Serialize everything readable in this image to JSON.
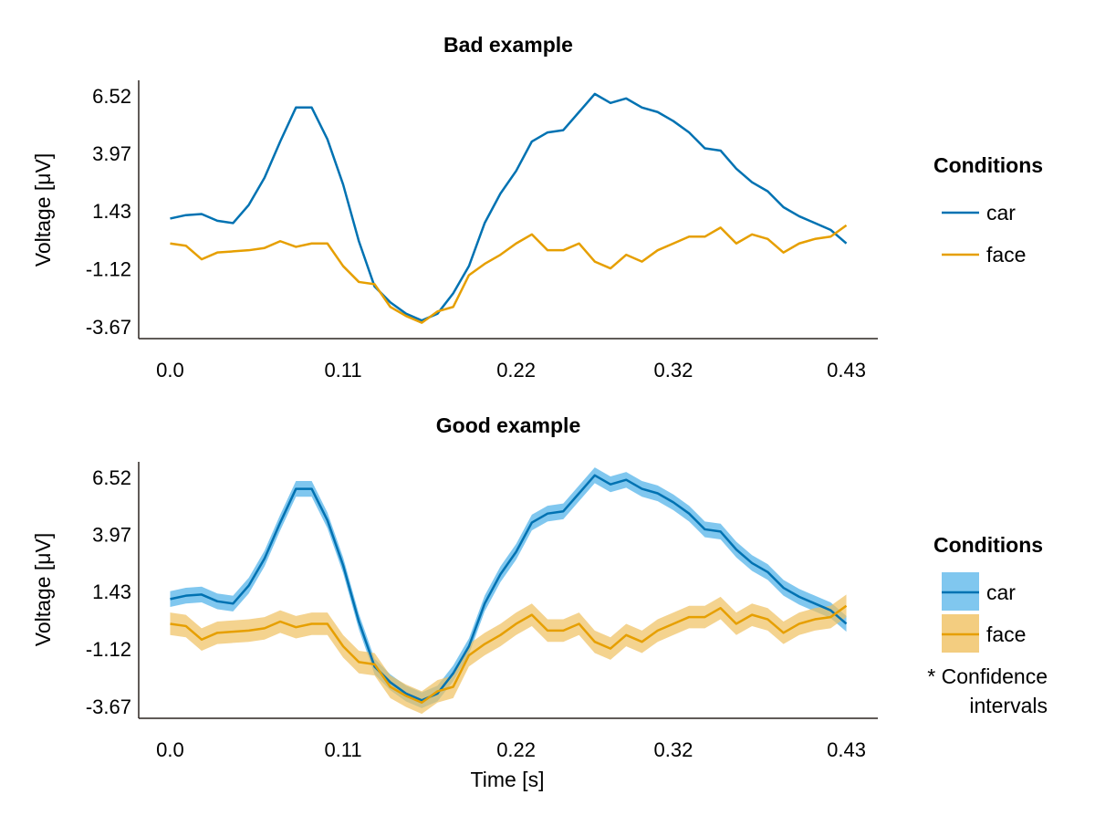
{
  "chart_data": [
    {
      "type": "line",
      "title": "Bad example",
      "xlabel": "",
      "ylabel": "Voltage [μV]",
      "xlim": [
        -0.02,
        0.45
      ],
      "ylim": [
        -4.2,
        7.2
      ],
      "xticks": [
        0.0,
        0.11,
        0.22,
        0.32,
        0.43
      ],
      "xtick_labels": [
        "0.0",
        "0.11",
        "0.22",
        "0.32",
        "0.43"
      ],
      "yticks": [
        6.52,
        3.97,
        1.43,
        -1.12,
        -3.67
      ],
      "ytick_labels": [
        "6.52",
        "3.97",
        "1.43",
        "-1.12",
        "-3.67"
      ],
      "x": [
        0.0,
        0.01,
        0.02,
        0.03,
        0.04,
        0.05,
        0.06,
        0.07,
        0.08,
        0.09,
        0.1,
        0.11,
        0.12,
        0.13,
        0.14,
        0.15,
        0.16,
        0.17,
        0.18,
        0.19,
        0.2,
        0.21,
        0.22,
        0.23,
        0.24,
        0.25,
        0.26,
        0.27,
        0.28,
        0.29,
        0.3,
        0.31,
        0.32,
        0.33,
        0.34,
        0.35,
        0.36,
        0.37,
        0.38,
        0.39,
        0.4,
        0.41,
        0.42,
        0.43
      ],
      "series": [
        {
          "name": "car",
          "color": "#0072B2",
          "values": [
            1.1,
            1.25,
            1.3,
            1.0,
            0.9,
            1.7,
            2.9,
            4.5,
            6.0,
            6.0,
            4.6,
            2.6,
            0.1,
            -1.9,
            -2.6,
            -3.1,
            -3.4,
            -3.1,
            -2.2,
            -1.0,
            0.9,
            2.2,
            3.2,
            4.5,
            4.9,
            5.0,
            5.8,
            6.6,
            6.2,
            6.4,
            6.0,
            5.8,
            5.4,
            4.9,
            4.2,
            4.1,
            3.3,
            2.7,
            2.3,
            1.6,
            1.2,
            0.9,
            0.6,
            0.0
          ]
        },
        {
          "name": "face",
          "color": "#E69F00",
          "values": [
            0.0,
            -0.1,
            -0.7,
            -0.4,
            -0.35,
            -0.3,
            -0.2,
            0.1,
            -0.15,
            0.0,
            0.0,
            -1.0,
            -1.7,
            -1.8,
            -2.8,
            -3.2,
            -3.5,
            -3.0,
            -2.8,
            -1.4,
            -0.9,
            -0.5,
            0.0,
            0.4,
            -0.3,
            -0.3,
            0.0,
            -0.8,
            -1.1,
            -0.5,
            -0.8,
            -0.3,
            0.0,
            0.3,
            0.3,
            0.7,
            0.0,
            0.4,
            0.2,
            -0.4,
            0.0,
            0.2,
            0.3,
            0.8
          ]
        }
      ],
      "legend": {
        "title": "Conditions",
        "position": "right",
        "items": [
          "car",
          "face"
        ]
      }
    },
    {
      "type": "line",
      "title": "Good example",
      "xlabel": "Time [s]",
      "ylabel": "Voltage [μV]",
      "xlim": [
        -0.02,
        0.45
      ],
      "ylim": [
        -4.2,
        7.2
      ],
      "xticks": [
        0.0,
        0.11,
        0.22,
        0.32,
        0.43
      ],
      "xtick_labels": [
        "0.0",
        "0.11",
        "0.22",
        "0.32",
        "0.43"
      ],
      "yticks": [
        6.52,
        3.97,
        1.43,
        -1.12,
        -3.67
      ],
      "ytick_labels": [
        "6.52",
        "3.97",
        "1.43",
        "-1.12",
        "-3.67"
      ],
      "x": [
        0.0,
        0.01,
        0.02,
        0.03,
        0.04,
        0.05,
        0.06,
        0.07,
        0.08,
        0.09,
        0.1,
        0.11,
        0.12,
        0.13,
        0.14,
        0.15,
        0.16,
        0.17,
        0.18,
        0.19,
        0.2,
        0.21,
        0.22,
        0.23,
        0.24,
        0.25,
        0.26,
        0.27,
        0.28,
        0.29,
        0.3,
        0.31,
        0.32,
        0.33,
        0.34,
        0.35,
        0.36,
        0.37,
        0.38,
        0.39,
        0.4,
        0.41,
        0.42,
        0.43
      ],
      "series": [
        {
          "name": "car",
          "color": "#0072B2",
          "band_color": "#56B4E9",
          "band_halfwidth": 0.35,
          "values": [
            1.1,
            1.25,
            1.3,
            1.0,
            0.9,
            1.7,
            2.9,
            4.5,
            6.0,
            6.0,
            4.6,
            2.6,
            0.1,
            -1.9,
            -2.6,
            -3.1,
            -3.4,
            -3.1,
            -2.2,
            -1.0,
            0.9,
            2.2,
            3.2,
            4.5,
            4.9,
            5.0,
            5.8,
            6.6,
            6.2,
            6.4,
            6.0,
            5.8,
            5.4,
            4.9,
            4.2,
            4.1,
            3.3,
            2.7,
            2.3,
            1.6,
            1.2,
            0.9,
            0.6,
            0.0
          ]
        },
        {
          "name": "face",
          "color": "#E69F00",
          "band_color": "#F0C060",
          "band_halfwidth": 0.5,
          "values": [
            0.0,
            -0.1,
            -0.7,
            -0.4,
            -0.35,
            -0.3,
            -0.2,
            0.1,
            -0.15,
            0.0,
            0.0,
            -1.0,
            -1.7,
            -1.8,
            -2.8,
            -3.2,
            -3.5,
            -3.0,
            -2.8,
            -1.4,
            -0.9,
            -0.5,
            0.0,
            0.4,
            -0.3,
            -0.3,
            0.0,
            -0.8,
            -1.1,
            -0.5,
            -0.8,
            -0.3,
            0.0,
            0.3,
            0.3,
            0.7,
            0.0,
            0.4,
            0.2,
            -0.4,
            0.0,
            0.2,
            0.3,
            0.8
          ]
        }
      ],
      "legend": {
        "title": "Conditions",
        "position": "right",
        "items": [
          "car",
          "face"
        ],
        "note_line1": "* Confidence",
        "note_line2": "intervals"
      }
    }
  ]
}
